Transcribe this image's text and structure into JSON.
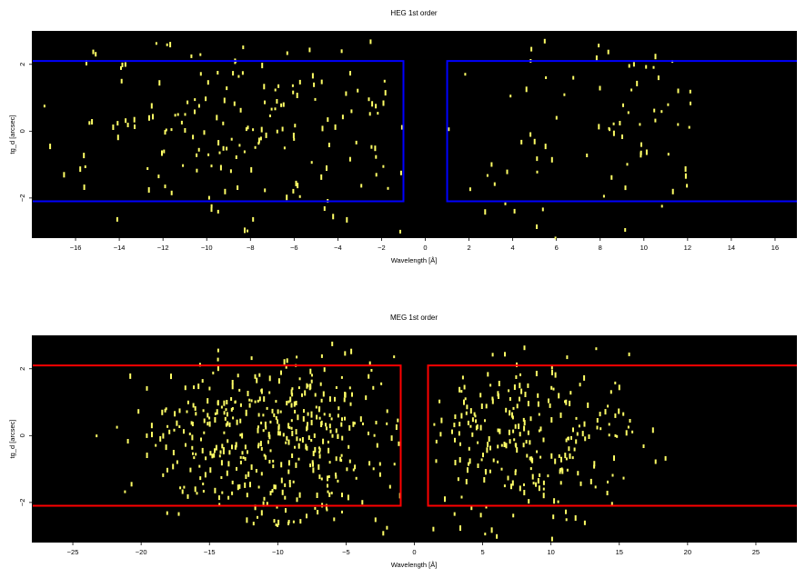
{
  "chart_data": [
    {
      "type": "scatter",
      "title": "HEG 1st order",
      "xlabel": "Wavelength [Å]",
      "ylabel": "tg_d [arcsec]",
      "xlim": [
        -18,
        17
      ],
      "ylim": [
        -3.2,
        3.0
      ],
      "xticks": [
        -16,
        -14,
        -12,
        -10,
        -8,
        -6,
        -4,
        -2,
        0,
        2,
        4,
        6,
        8,
        10,
        12,
        14,
        16
      ],
      "xtick_labels": [
        "−16",
        "−14",
        "−12",
        "−10",
        "−8",
        "−6",
        "−4",
        "−2",
        "0",
        "2",
        "4",
        "6",
        "8",
        "10",
        "12",
        "14",
        "16"
      ],
      "yticks": [
        -2,
        0,
        2
      ],
      "ytick_labels": [
        "−2",
        "0",
        "2"
      ],
      "background_color": "#000000",
      "point_color": "#ffff66",
      "grid": false,
      "regions": [
        {
          "x": [
            -18,
            -1
          ],
          "y": [
            -2.1,
            2.1
          ],
          "color": "#0000ff"
        },
        {
          "x": [
            1,
            18
          ],
          "y": [
            -2.1,
            2.1
          ],
          "color": "#0000ff"
        }
      ],
      "events": {
        "count": 320,
        "x_ranges": [
          [
            -17.8,
            -1.0
          ],
          [
            1.0,
            12.2
          ]
        ],
        "y_range": [
          -3.2,
          3.0
        ],
        "center_x": -8,
        "spread_x": 4.5,
        "spread_y": 1.5
      }
    },
    {
      "type": "scatter",
      "title": "MEG 1st order",
      "xlabel": "Wavelength [Å]",
      "ylabel": "tg_d [arcsec]",
      "xlim": [
        -28,
        28
      ],
      "ylim": [
        -3.2,
        3.0
      ],
      "xticks": [
        -25,
        -20,
        -15,
        -10,
        -5,
        0,
        5,
        10,
        15,
        20,
        25
      ],
      "xtick_labels": [
        "−25",
        "−20",
        "−15",
        "−10",
        "−5",
        "0",
        "5",
        "10",
        "15",
        "20",
        "25"
      ],
      "yticks": [
        -2,
        0,
        2
      ],
      "ytick_labels": [
        "−2",
        "0",
        "2"
      ],
      "background_color": "#000000",
      "point_color": "#ffff66",
      "grid": false,
      "regions": [
        {
          "x": [
            -28,
            -1
          ],
          "y": [
            -2.1,
            2.1
          ],
          "color": "#ff0000"
        },
        {
          "x": [
            1,
            28
          ],
          "y": [
            -2.1,
            2.1
          ],
          "color": "#ff0000"
        }
      ],
      "events": {
        "count": 720,
        "x_ranges": [
          [
            -27.5,
            -1.0
          ],
          [
            1.0,
            24.0
          ]
        ],
        "y_range": [
          -3.2,
          3.0
        ],
        "center_x": -10,
        "spread_x": 5,
        "spread_y": 1.3
      }
    }
  ]
}
